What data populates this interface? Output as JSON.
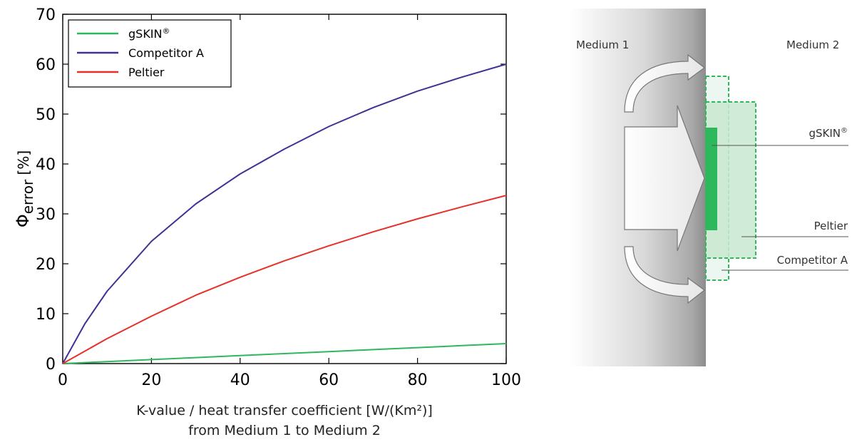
{
  "chart_data": {
    "type": "line",
    "ylabel_symbol": "Φ",
    "ylabel_sub": "error",
    "ylabel_unit": "[%]",
    "xlabel_line1": "K-value / heat transfer coefficient [W/(Km²)]",
    "xlabel_line2": "from Medium 1 to Medium 2",
    "xlim": [
      0,
      100
    ],
    "ylim": [
      0,
      70
    ],
    "xticks": [
      0,
      20,
      40,
      60,
      80,
      100
    ],
    "yticks": [
      0,
      10,
      20,
      30,
      40,
      50,
      60,
      70
    ],
    "grid": false,
    "legend_position": "top-left",
    "series": [
      {
        "name": "gSKIN",
        "name_sup": "®",
        "color": "#2eb85c",
        "x": [
          0,
          10,
          20,
          30,
          40,
          50,
          60,
          70,
          80,
          90,
          100
        ],
        "y": [
          0,
          0.4,
          0.8,
          1.2,
          1.6,
          2.0,
          2.4,
          2.8,
          3.2,
          3.6,
          4.0
        ]
      },
      {
        "name": "Competitor A",
        "color": "#3e3394",
        "x": [
          0,
          5,
          10,
          20,
          30,
          40,
          50,
          60,
          70,
          80,
          90,
          100
        ],
        "y": [
          0,
          8.0,
          14.5,
          24.5,
          32.0,
          38.0,
          43.0,
          47.5,
          51.3,
          54.6,
          57.4,
          60.0
        ]
      },
      {
        "name": "Peltier",
        "color": "#e8302a",
        "x": [
          0,
          10,
          20,
          30,
          40,
          50,
          60,
          70,
          80,
          90,
          100
        ],
        "y": [
          0,
          5.0,
          9.5,
          13.7,
          17.3,
          20.6,
          23.6,
          26.4,
          29.0,
          31.4,
          33.7
        ]
      }
    ]
  },
  "diagram": {
    "medium1_label": "Medium 1",
    "medium2_label": "Medium 2",
    "gskin_label": "gSKIN",
    "gskin_sup": "®",
    "peltier_label": "Peltier",
    "competitor_label": "Competitor A",
    "wall_color": "#8c8c8c",
    "sensor_color": "#2eb85c",
    "box_color": "#c8e8d0"
  }
}
